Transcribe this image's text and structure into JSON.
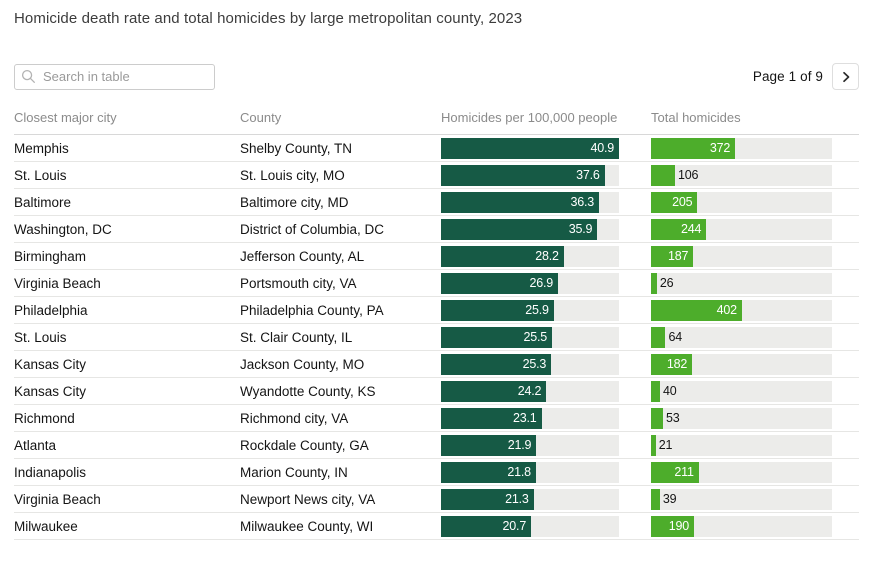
{
  "title": "Homicide death rate and total homicides by large metropolitan county, 2023",
  "search": {
    "placeholder": "Search in table"
  },
  "pagination": {
    "label": "Page 1 of 9",
    "next_icon": "chevron-right-icon"
  },
  "colors": {
    "rate_bar": "#165a45",
    "total_bar": "#4dad2b",
    "track": "#ececea"
  },
  "chart_data": {
    "type": "table",
    "title": "Homicide death rate and total homicides by large metropolitan county, 2023",
    "columns": [
      "Closest major city",
      "County",
      "Homicides per 100,000 people",
      "Total homicides"
    ],
    "rate_axis": {
      "min": 0,
      "max": 40.9
    },
    "total_axis": {
      "min": 0,
      "max": 800
    },
    "rows": [
      {
        "city": "Memphis",
        "county": "Shelby County, TN",
        "rate": 40.9,
        "total": 372
      },
      {
        "city": "St. Louis",
        "county": "St. Louis city, MO",
        "rate": 37.6,
        "total": 106
      },
      {
        "city": "Baltimore",
        "county": "Baltimore city, MD",
        "rate": 36.3,
        "total": 205
      },
      {
        "city": "Washington, DC",
        "county": "District of Columbia, DC",
        "rate": 35.9,
        "total": 244
      },
      {
        "city": "Birmingham",
        "county": "Jefferson County, AL",
        "rate": 28.2,
        "total": 187
      },
      {
        "city": "Virginia Beach",
        "county": "Portsmouth city, VA",
        "rate": 26.9,
        "total": 26
      },
      {
        "city": "Philadelphia",
        "county": "Philadelphia County, PA",
        "rate": 25.9,
        "total": 402
      },
      {
        "city": "St. Louis",
        "county": "St. Clair County, IL",
        "rate": 25.5,
        "total": 64
      },
      {
        "city": "Kansas City",
        "county": "Jackson County, MO",
        "rate": 25.3,
        "total": 182
      },
      {
        "city": "Kansas City",
        "county": "Wyandotte County, KS",
        "rate": 24.2,
        "total": 40
      },
      {
        "city": "Richmond",
        "county": "Richmond city, VA",
        "rate": 23.1,
        "total": 53
      },
      {
        "city": "Atlanta",
        "county": "Rockdale County, GA",
        "rate": 21.9,
        "total": 21
      },
      {
        "city": "Indianapolis",
        "county": "Marion County, IN",
        "rate": 21.8,
        "total": 211
      },
      {
        "city": "Virginia Beach",
        "county": "Newport News city, VA",
        "rate": 21.3,
        "total": 39
      },
      {
        "city": "Milwaukee",
        "county": "Milwaukee County, WI",
        "rate": 20.7,
        "total": 190
      }
    ]
  }
}
